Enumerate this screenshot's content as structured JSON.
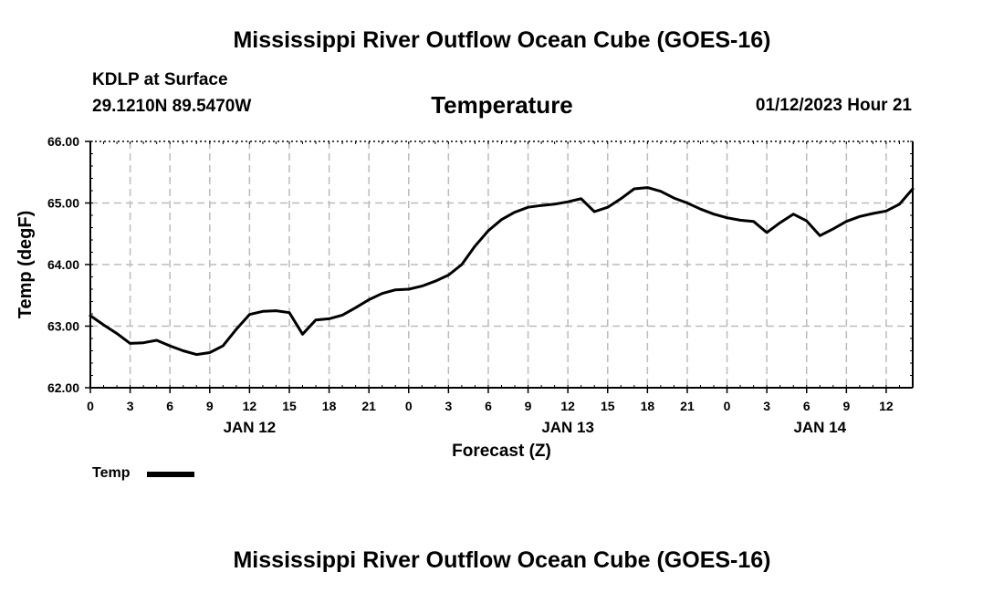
{
  "header": {
    "title": "Mississippi River Outflow Ocean Cube (GOES-16)",
    "station": "KDLP at Surface",
    "coords": "29.1210N  89.5470W",
    "chart_title": "Temperature",
    "valid_time": "01/12/2023 Hour 21"
  },
  "footer": {
    "title": "Mississippi River Outflow Ocean Cube (GOES-16)"
  },
  "legend": {
    "label": "Temp"
  },
  "colors": {
    "line": "#000000",
    "grid": "#bbbbbb",
    "background": "#ffffff"
  },
  "chart_data": {
    "type": "line",
    "title": "Temperature",
    "xlabel": "Forecast (Z)",
    "ylabel": "Temp (degF)",
    "ylim": [
      62.0,
      66.0
    ],
    "xlim_hours": [
      0,
      62
    ],
    "y_ticks": [
      "62.00",
      "63.00",
      "64.00",
      "65.00",
      "66.00"
    ],
    "x_ticks": [
      {
        "h": 0,
        "label": "0"
      },
      {
        "h": 3,
        "label": "3"
      },
      {
        "h": 6,
        "label": "6"
      },
      {
        "h": 9,
        "label": "9"
      },
      {
        "h": 12,
        "label": "12"
      },
      {
        "h": 15,
        "label": "15"
      },
      {
        "h": 18,
        "label": "18"
      },
      {
        "h": 21,
        "label": "21"
      },
      {
        "h": 24,
        "label": "0"
      },
      {
        "h": 27,
        "label": "3"
      },
      {
        "h": 30,
        "label": "6"
      },
      {
        "h": 33,
        "label": "9"
      },
      {
        "h": 36,
        "label": "12"
      },
      {
        "h": 39,
        "label": "15"
      },
      {
        "h": 42,
        "label": "18"
      },
      {
        "h": 45,
        "label": "21"
      },
      {
        "h": 48,
        "label": "0"
      },
      {
        "h": 51,
        "label": "3"
      },
      {
        "h": 54,
        "label": "6"
      },
      {
        "h": 57,
        "label": "9"
      },
      {
        "h": 60,
        "label": "12"
      }
    ],
    "day_labels": [
      {
        "h": 12,
        "label": "JAN 12"
      },
      {
        "h": 36,
        "label": "JAN 13"
      },
      {
        "h": 55,
        "label": "JAN 14"
      }
    ],
    "grid": true,
    "series": [
      {
        "name": "Temp",
        "x": [
          0,
          1,
          2,
          3,
          4,
          5,
          6,
          7,
          8,
          9,
          10,
          11,
          12,
          13,
          14,
          15,
          16,
          17,
          18,
          19,
          20,
          21,
          22,
          23,
          24,
          25,
          26,
          27,
          28,
          29,
          30,
          31,
          32,
          33,
          34,
          35,
          36,
          37,
          38,
          39,
          40,
          41,
          42,
          43,
          44,
          45,
          46,
          47,
          48,
          49,
          50,
          51,
          52,
          53,
          54,
          55,
          56,
          57,
          58,
          59,
          60,
          61,
          62
        ],
        "values": [
          63.17,
          63.02,
          62.88,
          62.72,
          62.73,
          62.77,
          62.68,
          62.6,
          62.54,
          62.57,
          62.68,
          62.95,
          63.19,
          63.24,
          63.25,
          63.22,
          62.87,
          63.1,
          63.12,
          63.18,
          63.3,
          63.43,
          63.53,
          63.59,
          63.6,
          63.65,
          63.73,
          63.83,
          64.0,
          64.3,
          64.55,
          64.73,
          64.85,
          64.93,
          64.96,
          64.98,
          65.02,
          65.07,
          64.86,
          64.93,
          65.07,
          65.23,
          65.25,
          65.19,
          65.08,
          65.0,
          64.9,
          64.82,
          64.76,
          64.72,
          64.7,
          64.52,
          64.68,
          64.82,
          64.71,
          64.47,
          64.58,
          64.7,
          64.78,
          64.83,
          64.87,
          64.98,
          65.23
        ]
      }
    ]
  }
}
